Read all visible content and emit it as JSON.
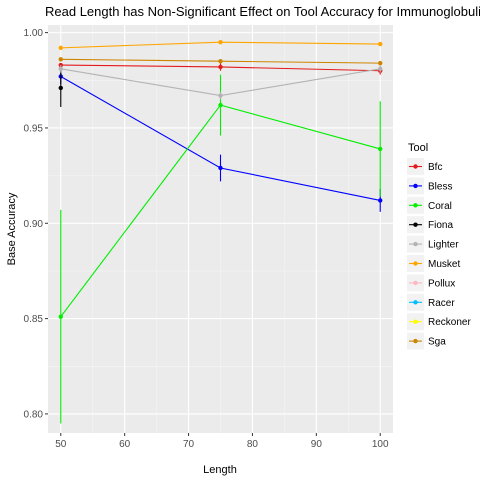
{
  "chart_data": {
    "type": "line",
    "title": "Read Length has Non-Significant Effect on Tool Accuracy for Immunoglobulins",
    "xlabel": "Length",
    "ylabel": "Base Accuracy",
    "xlim": [
      48,
      102
    ],
    "ylim": [
      0.79,
      1.004
    ],
    "x_ticks": [
      50,
      60,
      70,
      80,
      90,
      100
    ],
    "y_ticks": [
      0.8,
      0.85,
      0.9,
      0.95,
      1.0
    ],
    "y_tick_labels": [
      "0.80",
      "0.85",
      "0.90",
      "0.95",
      "1.00"
    ],
    "grid": true,
    "legend_title": "Tool",
    "legend_position": "right",
    "x": [
      50,
      75,
      100
    ],
    "series": [
      {
        "name": "Bfc",
        "color": "#e41a1c",
        "values": [
          0.983,
          0.982,
          0.98
        ],
        "err": [
          0.001,
          0.002,
          0.002
        ]
      },
      {
        "name": "Bless",
        "color": "#0000ff",
        "values": [
          0.977,
          0.929,
          0.912
        ],
        "err": [
          0.004,
          0.007,
          0.006
        ]
      },
      {
        "name": "Coral",
        "color": "#00ee00",
        "values": [
          0.851,
          0.962,
          0.939
        ],
        "err": [
          0.056,
          0.016,
          0.025
        ]
      },
      {
        "name": "Fiona",
        "color": "#000000",
        "values": [
          0.971,
          null,
          null
        ],
        "err": [
          0.01,
          null,
          null
        ]
      },
      {
        "name": "Lighter",
        "color": "#b3b3b3",
        "values": [
          0.981,
          0.967,
          0.981
        ],
        "err": [
          0.002,
          0.002,
          0.002
        ]
      },
      {
        "name": "Musket",
        "color": "#ffa500",
        "values": [
          0.992,
          0.995,
          0.994
        ],
        "err": [
          0.0008,
          0.0008,
          0.0008
        ]
      },
      {
        "name": "Pollux",
        "color": "#ffb6c1",
        "values": [
          null,
          null,
          null
        ],
        "err": [
          null,
          null,
          null
        ]
      },
      {
        "name": "Racer",
        "color": "#00bfff",
        "values": [
          null,
          null,
          null
        ],
        "err": [
          null,
          null,
          null
        ]
      },
      {
        "name": "Reckoner",
        "color": "#ffff00",
        "values": [
          null,
          null,
          null
        ],
        "err": [
          null,
          null,
          null
        ]
      },
      {
        "name": "Sga",
        "color": "#cd8500",
        "values": [
          0.986,
          0.985,
          0.984
        ],
        "err": [
          0.0008,
          0.0008,
          0.0008
        ]
      }
    ]
  }
}
